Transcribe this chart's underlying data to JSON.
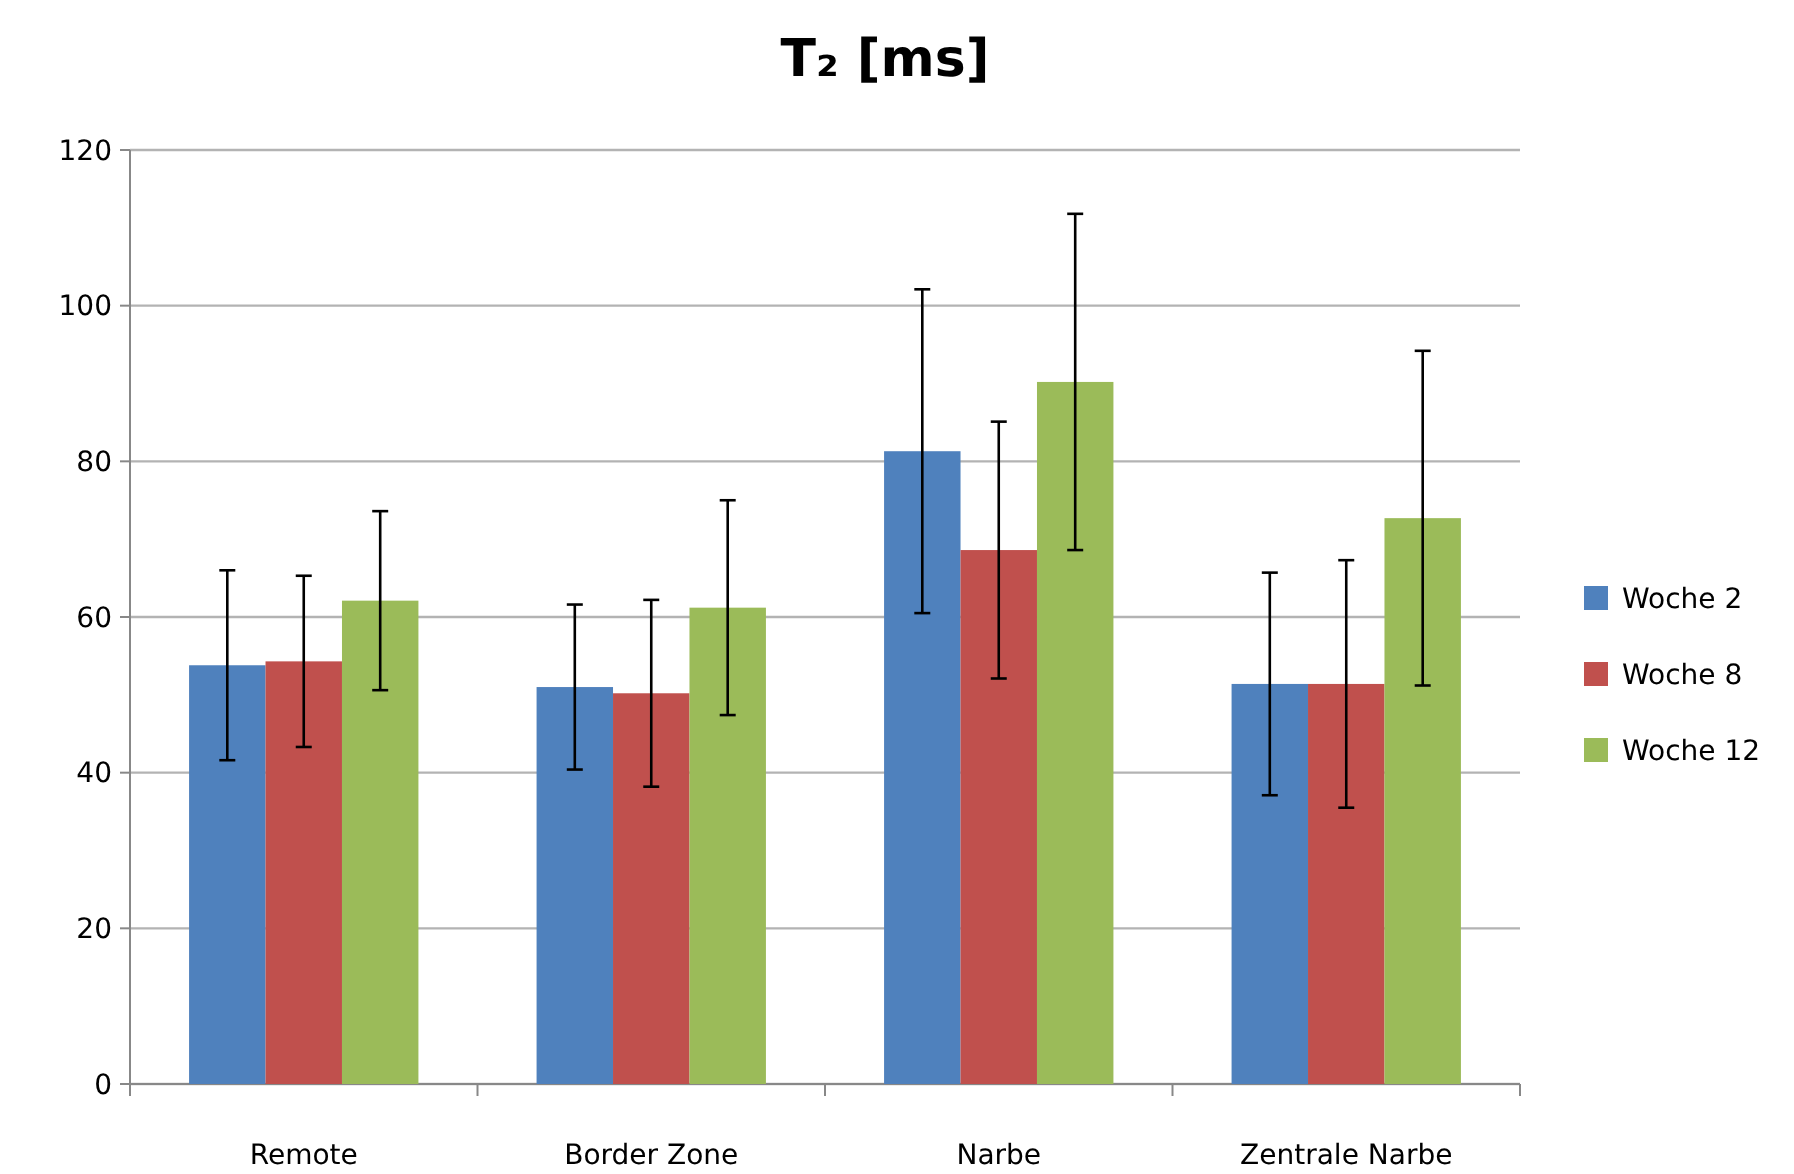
{
  "chart_data": {
    "type": "bar",
    "title": "T₂ [ms]",
    "categories": [
      "Remote",
      "Border Zone",
      "Narbe",
      "Zentrale Narbe"
    ],
    "series": [
      {
        "name": "Woche 2",
        "color": "#4f81bd",
        "values": [
          53.8,
          51.0,
          81.3,
          51.4
        ],
        "errors": [
          12.2,
          10.6,
          20.8,
          14.3
        ]
      },
      {
        "name": "Woche 8",
        "color": "#c0504d",
        "values": [
          54.3,
          50.2,
          68.6,
          51.4
        ],
        "errors": [
          11,
          12,
          16.5,
          15.9
        ]
      },
      {
        "name": "Woche 12",
        "color": "#9bbb59",
        "values": [
          62.1,
          61.2,
          90.2,
          72.7
        ],
        "errors": [
          11.5,
          13.8,
          21.6,
          21.5
        ]
      }
    ],
    "ylim": [
      0,
      120
    ],
    "yticks": [
      0,
      20,
      40,
      60,
      80,
      100,
      120
    ],
    "grid": "y",
    "legend": "right"
  }
}
